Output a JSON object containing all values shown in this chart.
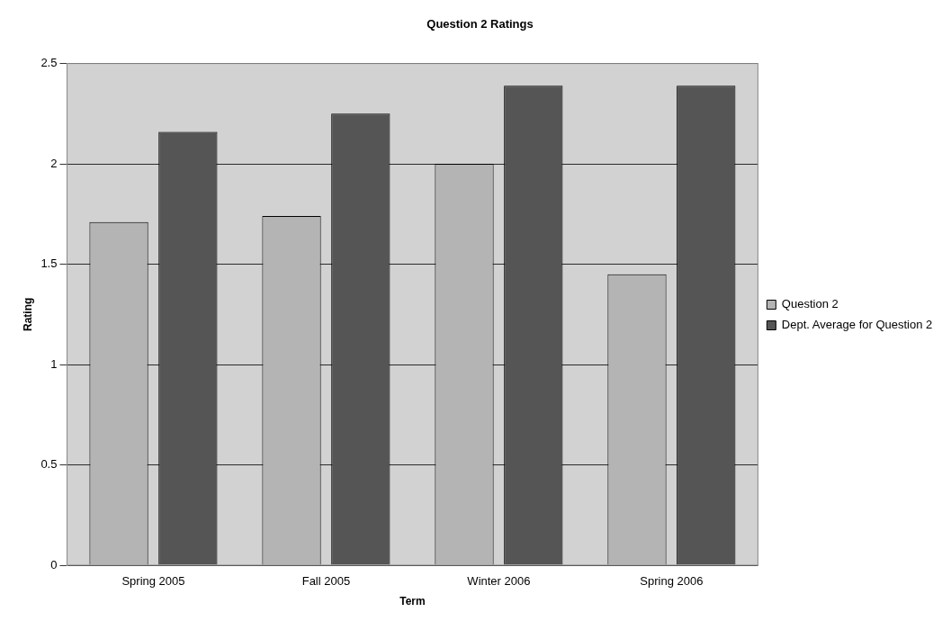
{
  "chart_data": {
    "type": "bar",
    "title": "Question 2 Ratings",
    "xlabel": "Term",
    "ylabel": "Rating",
    "categories": [
      "Spring 2005",
      "Fall 2005",
      "Winter 2006",
      "Spring 2006"
    ],
    "series": [
      {
        "name": "Question 2",
        "color": "#b4b4b4",
        "values": [
          1.71,
          1.74,
          2.0,
          1.45
        ]
      },
      {
        "name": "Dept. Average for Question 2",
        "color": "#555555",
        "values": [
          2.16,
          2.25,
          2.39,
          2.39
        ]
      }
    ],
    "ylim": [
      0,
      2.5
    ],
    "yticks": [
      0,
      0.5,
      1,
      1.5,
      2,
      2.5
    ],
    "grid": "y",
    "legend": "right"
  }
}
